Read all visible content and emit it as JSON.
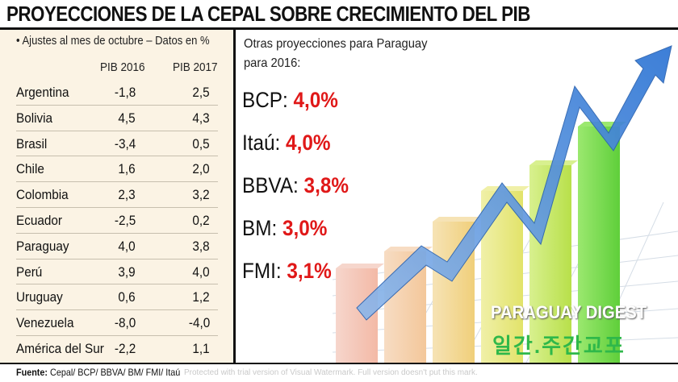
{
  "title": "PROYECCIONES DE LA CEPAL SOBRE CRECIMIENTO DEL PIB",
  "table": {
    "subtitle": "• Ajustes al mes de octubre – Datos en %",
    "columns": [
      "PIB 2016",
      "PIB 2017"
    ],
    "rows": [
      {
        "country": "Argentina",
        "pib2016": "-1,8",
        "pib2017": "2,5"
      },
      {
        "country": "Bolivia",
        "pib2016": "4,5",
        "pib2017": "4,3"
      },
      {
        "country": "Brasil",
        "pib2016": "-3,4",
        "pib2017": "0,5"
      },
      {
        "country": "Chile",
        "pib2016": "1,6",
        "pib2017": "2,0"
      },
      {
        "country": "Colombia",
        "pib2016": "2,3",
        "pib2017": "3,2"
      },
      {
        "country": "Ecuador",
        "pib2016": "-2,5",
        "pib2017": "0,2"
      },
      {
        "country": "Paraguay",
        "pib2016": "4,0",
        "pib2017": "3,8"
      },
      {
        "country": "Perú",
        "pib2016": "3,9",
        "pib2017": "4,0"
      },
      {
        "country": "Uruguay",
        "pib2016": "0,6",
        "pib2017": "1,2"
      },
      {
        "country": "Venezuela",
        "pib2016": "-8,0",
        "pib2017": "-4,0"
      },
      {
        "country": "América del Sur",
        "pib2016": "-2,2",
        "pib2017": "1,1"
      }
    ]
  },
  "other": {
    "heading_line1": "Otras proyecciones para Paraguay",
    "heading_line2": "para 2016:",
    "items": [
      {
        "label": "BCP:",
        "value": "4,0%"
      },
      {
        "label": "Itaú:",
        "value": "4,0%"
      },
      {
        "label": "BBVA:",
        "value": "3,8%"
      },
      {
        "label": "BM:",
        "value": "3,0%"
      },
      {
        "label": "FMI:",
        "value": "3,1%"
      }
    ]
  },
  "source": {
    "label": "Fuente:",
    "text": "Cepal/ BCP/ BBVA/ BM/ FMI/ Itaú"
  },
  "watermark": "Protected with trial version of Visual Watermark. Full version doesn't put this mark.",
  "brand": "PARAGUAY DIGEST",
  "brand_korean": "일간.주간교포",
  "colors": {
    "accent_red": "#e01818",
    "arrow_blue": "#3f86d8",
    "panel_bg": "#fbf3e4"
  },
  "chart_data": {
    "type": "table",
    "title": "PROYECCIONES DE LA CEPAL SOBRE CRECIMIENTO DEL PIB",
    "columns": [
      "PIB 2016",
      "PIB 2017"
    ],
    "categories": [
      "Argentina",
      "Bolivia",
      "Brasil",
      "Chile",
      "Colombia",
      "Ecuador",
      "Paraguay",
      "Perú",
      "Uruguay",
      "Venezuela",
      "América del Sur"
    ],
    "series": [
      {
        "name": "PIB 2016",
        "values": [
          -1.8,
          4.5,
          -3.4,
          1.6,
          2.3,
          -2.5,
          4.0,
          3.9,
          0.6,
          -8.0,
          -2.2
        ]
      },
      {
        "name": "PIB 2017",
        "values": [
          2.5,
          4.3,
          0.5,
          2.0,
          3.2,
          0.2,
          3.8,
          4.0,
          1.2,
          -4.0,
          1.1
        ]
      }
    ],
    "paraguay_2016_other": {
      "BCP": 4.0,
      "Itaú": 4.0,
      "BBVA": 3.8,
      "BM": 3.0,
      "FMI": 3.1
    }
  }
}
